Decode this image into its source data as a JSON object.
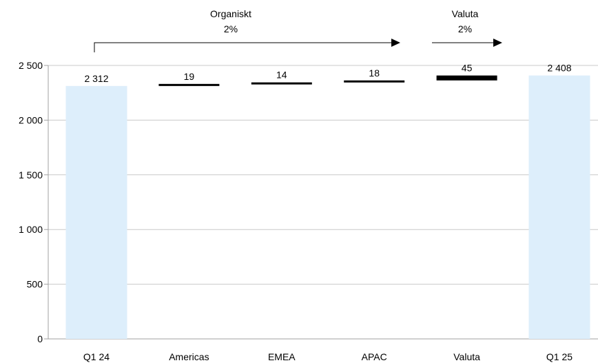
{
  "chart_data": {
    "type": "bar",
    "subtype": "waterfall",
    "categories": [
      "Q1 24",
      "Americas",
      "EMEA",
      "APAC",
      "Valuta",
      "Q1 25"
    ],
    "values": [
      2312,
      19,
      14,
      18,
      45,
      2408
    ],
    "bar_kinds": [
      "total",
      "delta",
      "delta",
      "delta",
      "delta",
      "total"
    ],
    "data_labels": [
      "2 312",
      "19",
      "14",
      "18",
      "45",
      "2 408"
    ],
    "ylim": [
      0,
      2500
    ],
    "yticks": [
      0,
      500,
      1000,
      1500,
      2000,
      2500
    ],
    "ytick_labels": [
      "0",
      "500",
      "1 000",
      "1 500",
      "2 000",
      "2 500"
    ],
    "grid": true,
    "annotations": [
      {
        "label": "Organiskt",
        "value": "2%",
        "from": "Q1 24",
        "to": "APAC"
      },
      {
        "label": "Valuta",
        "value": "2%",
        "from": "Valuta",
        "to": "Valuta"
      }
    ],
    "colors": {
      "total": "#ddeefb",
      "delta": "#000000",
      "grid": "#c8c8c8"
    }
  }
}
